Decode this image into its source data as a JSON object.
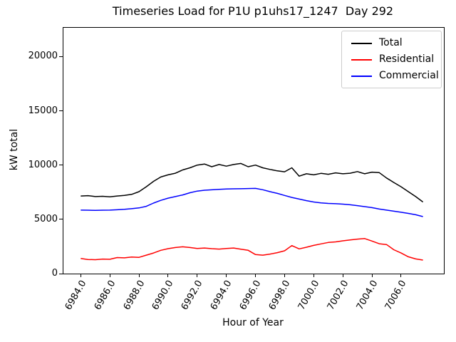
{
  "chart_data": {
    "type": "line",
    "title": "Timeseries Load for P1U p1uhs17_1247  Day 292",
    "xlabel": "Hour of Year",
    "ylabel": "kW total",
    "xlim": [
      6982.81,
      7008.94
    ],
    "ylim": [
      0,
      22650
    ],
    "grid": false,
    "legend_position": "upper right",
    "x_tick_labels": [
      "6984.0",
      "6986.0",
      "6988.0",
      "6990.0",
      "6992.0",
      "6994.0",
      "6996.0",
      "6998.0",
      "7000.0",
      "7002.0",
      "7004.0",
      "7006.0"
    ],
    "y_tick_labels": [
      "0",
      "5000",
      "10000",
      "15000",
      "20000"
    ],
    "x": [
      6984.0,
      6984.5,
      6985.0,
      6985.5,
      6986.0,
      6986.5,
      6987.0,
      6987.5,
      6988.0,
      6988.5,
      6989.0,
      6989.5,
      6990.0,
      6990.5,
      6991.0,
      6991.5,
      6992.0,
      6992.5,
      6993.0,
      6993.5,
      6994.0,
      6994.5,
      6995.0,
      6995.5,
      6996.0,
      6996.5,
      6997.0,
      6997.5,
      6998.0,
      6998.5,
      6999.0,
      6999.5,
      7000.0,
      7000.5,
      7001.0,
      7001.5,
      7002.0,
      7002.5,
      7003.0,
      7003.5,
      7004.0,
      7004.5,
      7005.0,
      7005.5,
      7006.0,
      7006.5,
      7007.0,
      7007.5
    ],
    "series": [
      {
        "name": "Total",
        "color": "#000000",
        "values": [
          7150,
          7180,
          7100,
          7120,
          7080,
          7150,
          7200,
          7300,
          7550,
          8000,
          8500,
          8900,
          9100,
          9250,
          9550,
          9750,
          10000,
          10100,
          9850,
          10050,
          9900,
          10050,
          10150,
          9850,
          10000,
          9750,
          9600,
          9470,
          9380,
          9750,
          8980,
          9200,
          9100,
          9240,
          9150,
          9280,
          9200,
          9250,
          9400,
          9200,
          9350,
          9300,
          8810,
          8400,
          8000,
          7550,
          7100,
          6600
        ]
      },
      {
        "name": "Residential",
        "color": "#ff0000",
        "values": [
          1400,
          1300,
          1280,
          1340,
          1320,
          1480,
          1450,
          1530,
          1500,
          1700,
          1900,
          2150,
          2300,
          2400,
          2470,
          2400,
          2320,
          2360,
          2300,
          2260,
          2320,
          2360,
          2250,
          2150,
          1750,
          1700,
          1800,
          1930,
          2100,
          2580,
          2280,
          2430,
          2600,
          2740,
          2870,
          2920,
          3020,
          3100,
          3180,
          3230,
          3000,
          2750,
          2680,
          2200,
          1900,
          1550,
          1350,
          1250
        ]
      },
      {
        "name": "Commercial",
        "color": "#0000ff",
        "values": [
          5850,
          5840,
          5830,
          5840,
          5850,
          5880,
          5920,
          5980,
          6050,
          6200,
          6500,
          6750,
          6950,
          7100,
          7250,
          7450,
          7600,
          7680,
          7720,
          7760,
          7800,
          7810,
          7820,
          7840,
          7850,
          7730,
          7550,
          7390,
          7200,
          7020,
          6870,
          6720,
          6600,
          6520,
          6470,
          6440,
          6400,
          6340,
          6260,
          6170,
          6080,
          5950,
          5850,
          5750,
          5650,
          5550,
          5420,
          5250
        ]
      }
    ]
  }
}
